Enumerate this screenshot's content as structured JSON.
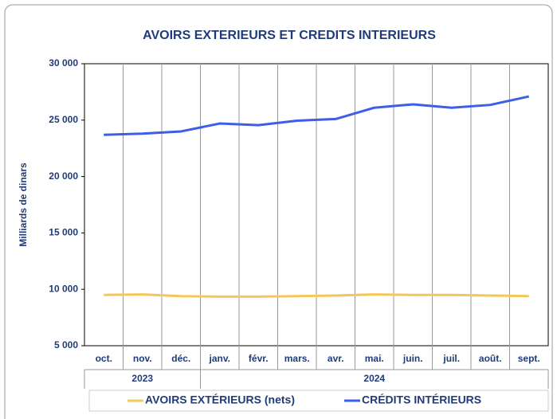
{
  "chart_data": {
    "type": "line",
    "title": "AVOIRS EXTERIEURS ET CREDITS INTERIEURS",
    "y_label": "Milliards de dinars",
    "categories": [
      "oct.",
      "nov.",
      "déc.",
      "janv.",
      "févr.",
      "mars.",
      "avr.",
      "mai.",
      "juin.",
      "juil.",
      "août.",
      "sept."
    ],
    "x_groups": [
      {
        "label": "2023",
        "span": 3
      },
      {
        "label": "2024",
        "span": 9
      }
    ],
    "series": [
      {
        "name": "AVOIRS EXTÉRIEURS (nets)",
        "color": "#f5c75a",
        "values": [
          9500,
          9550,
          9400,
          9350,
          9350,
          9400,
          9450,
          9550,
          9500,
          9500,
          9450,
          9400
        ]
      },
      {
        "name": "CRÉDITS INTÉRIEURS",
        "color": "#3d5ee8",
        "values": [
          23700,
          23800,
          24000,
          24700,
          24550,
          24950,
          25100,
          26100,
          26400,
          26100,
          26350,
          27100
        ]
      }
    ],
    "ylim": [
      5000,
      30000
    ],
    "yticks": [
      {
        "value": 5000,
        "label": "5 000"
      },
      {
        "value": 10000,
        "label": "10 000"
      },
      {
        "value": 15000,
        "label": "15 000"
      },
      {
        "value": 20000,
        "label": "20 000"
      },
      {
        "value": 25000,
        "label": "25 000"
      },
      {
        "value": 30000,
        "label": "30 000"
      }
    ],
    "grid": {
      "x": true,
      "y": false
    },
    "legend": "bottom"
  }
}
